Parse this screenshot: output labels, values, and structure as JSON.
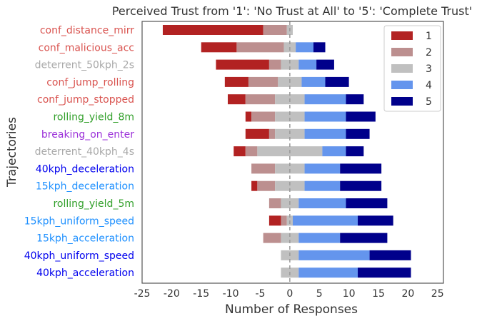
{
  "chart_data": {
    "type": "bar",
    "orientation": "horizontal",
    "stacking": "diverging",
    "title": "Perceived Trust from '1': 'No Trust at All' to '5': 'Complete Trust'",
    "xlabel": "Number of Responses",
    "ylabel": "Trajectories",
    "xlim": [
      -25,
      26
    ],
    "xticks": [
      -25,
      -20,
      -15,
      -10,
      -5,
      0,
      5,
      10,
      15,
      20,
      25
    ],
    "grid": false,
    "legend_position": "top-right",
    "reference_line": {
      "x": 0,
      "style": "dashed",
      "color": "#999999"
    },
    "categories": [
      {
        "label": "conf_distance_mirr",
        "color": "#d9534f"
      },
      {
        "label": "conf_malicious_acc",
        "color": "#d9534f"
      },
      {
        "label": "deterrent_50kph_2s",
        "color": "#a9a9a9"
      },
      {
        "label": "conf_jump_rolling",
        "color": "#d9534f"
      },
      {
        "label": "conf_jump_stopped",
        "color": "#d9534f"
      },
      {
        "label": "rolling_yield_8m",
        "color": "#33a02c"
      },
      {
        "label": "breaking_on_enter",
        "color": "#9b30d9"
      },
      {
        "label": "deterrent_40kph_4s",
        "color": "#a9a9a9"
      },
      {
        "label": "40kph_deceleration",
        "color": "#0000ee"
      },
      {
        "label": "15kph_deceleration",
        "color": "#1e90ff"
      },
      {
        "label": "rolling_yield_5m",
        "color": "#33a02c"
      },
      {
        "label": "15kph_uniform_speed",
        "color": "#1e90ff"
      },
      {
        "label": "15kph_acceleration",
        "color": "#1e90ff"
      },
      {
        "label": "40kph_uniform_speed",
        "color": "#0000ee"
      },
      {
        "label": "40kph_acceleration",
        "color": "#0000ee"
      }
    ],
    "series": [
      {
        "name": "1",
        "color": "#b22222",
        "values": [
          17,
          6,
          9,
          4,
          3,
          1,
          4,
          2,
          0,
          1,
          0,
          2,
          0,
          0,
          0
        ]
      },
      {
        "name": "2",
        "color": "#bc8f8f",
        "values": [
          4,
          8,
          2,
          5,
          5,
          4,
          1,
          2,
          4,
          3,
          2,
          1,
          3,
          0,
          0
        ]
      },
      {
        "name": "3",
        "color": "#c0c0c0",
        "values": [
          1,
          2,
          3,
          4,
          5,
          5,
          5,
          11,
          5,
          5,
          3,
          1,
          3,
          3,
          3
        ]
      },
      {
        "name": "4",
        "color": "#6495ed",
        "values": [
          0,
          3,
          3,
          4,
          7,
          7,
          7,
          4,
          6,
          6,
          8,
          11,
          7,
          12,
          10
        ]
      },
      {
        "name": "5",
        "color": "#00008b",
        "values": [
          0,
          2,
          3,
          4,
          3,
          5,
          4,
          3,
          7,
          7,
          7,
          6,
          8,
          7,
          9
        ]
      }
    ]
  }
}
